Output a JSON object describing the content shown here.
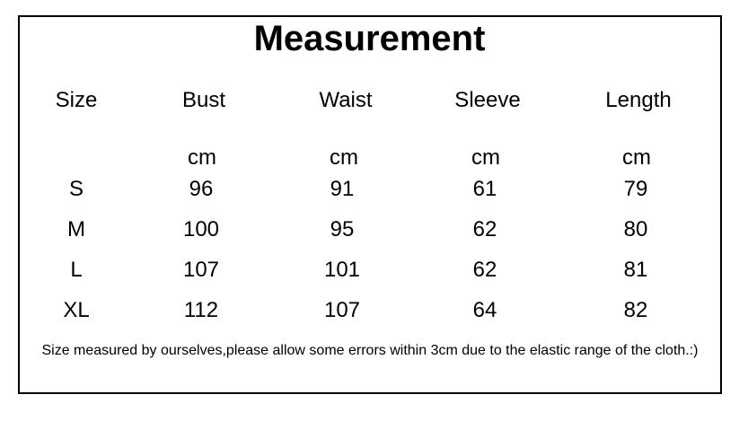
{
  "title": "Measurement",
  "headers": [
    "Size",
    "Bust",
    "Waist",
    "Sleeve",
    "Length"
  ],
  "units": [
    "",
    "cm",
    "cm",
    "cm",
    "cm"
  ],
  "rows": [
    [
      "S",
      "96",
      "91",
      "61",
      "79"
    ],
    [
      "M",
      "100",
      "95",
      "62",
      "80"
    ],
    [
      "L",
      "107",
      "101",
      "62",
      "81"
    ],
    [
      "XL",
      "112",
      "107",
      "64",
      "82"
    ]
  ],
  "note": "Size measured by ourselves,please allow some errors within 3cm due to the elastic range of the cloth.:)"
}
